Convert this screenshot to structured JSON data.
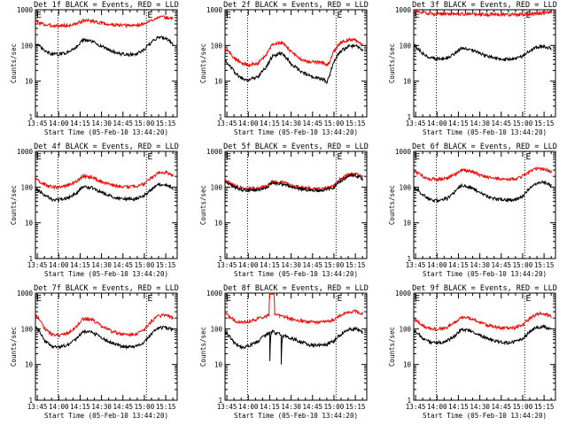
{
  "chart_data": {
    "type": "line",
    "layout": "3x3 grid of panels",
    "yscale": "log",
    "ylim": [
      1,
      1000
    ],
    "yticks": [
      "1",
      "10",
      "100",
      "1000"
    ],
    "ylabel": "Counts/sec",
    "xticks": [
      "13:45",
      "14:00",
      "14:15",
      "14:30",
      "14:45",
      "15:00",
      "15:15"
    ],
    "xtick_minutes": [
      0,
      15,
      30,
      45,
      60,
      75,
      90
    ],
    "xlim_minutes": [
      -1.3,
      98
    ],
    "xlabel": "Start Time (05-Feb-10 13:44:20)",
    "dotted_lines_minutes": [
      14.5,
      76.5
    ],
    "flag_marks": [
      {
        "label": "E",
        "position": "left"
      },
      {
        "label": "E",
        "position": "right"
      }
    ],
    "colors": {
      "events": "#000000",
      "lld": "#ff0000"
    },
    "panels": [
      {
        "title": "Det 1f BLACK = Events, RED = LLD",
        "series": [
          {
            "name": "Events",
            "color": "#000000",
            "x": [
              -1,
              5,
              10,
              15,
              22,
              28,
              32,
              38,
              45,
              52,
              58,
              64,
              70,
              75,
              80,
              85,
              90,
              95
            ],
            "y": [
              110,
              70,
              57,
              56,
              65,
              95,
              140,
              130,
              95,
              70,
              58,
              55,
              58,
              75,
              120,
              175,
              160,
              110
            ]
          },
          {
            "name": "LLD",
            "color": "#ff0000",
            "x": [
              -1,
              5,
              10,
              15,
              22,
              28,
              32,
              38,
              45,
              52,
              58,
              64,
              70,
              75,
              80,
              85,
              90,
              95
            ],
            "y": [
              470,
              380,
              360,
              355,
              360,
              410,
              500,
              490,
              420,
              380,
              365,
              360,
              370,
              400,
              500,
              640,
              600,
              560
            ]
          }
        ]
      },
      {
        "title": "Det 2f BLACK = Events, RED = LLD",
        "series": [
          {
            "name": "Events",
            "color": "#000000",
            "x": [
              -1,
              5,
              10,
              15,
              22,
              28,
              32,
              38,
              45,
              52,
              58,
              64,
              68,
              70,
              72,
              75,
              80,
              85,
              90,
              95
            ],
            "y": [
              38,
              18,
              12,
              11,
              13,
              25,
              50,
              60,
              30,
              18,
              14,
              12,
              11,
              9,
              14,
              35,
              70,
              95,
              100,
              75
            ]
          },
          {
            "name": "LLD",
            "color": "#ff0000",
            "x": [
              -1,
              5,
              10,
              15,
              22,
              28,
              32,
              38,
              45,
              52,
              58,
              64,
              68,
              70,
              72,
              75,
              80,
              85,
              90,
              95
            ],
            "y": [
              80,
              45,
              32,
              28,
              32,
              55,
              110,
              120,
              65,
              40,
              35,
              33,
              32,
              28,
              35,
              70,
              120,
              145,
              140,
              105
            ]
          }
        ]
      },
      {
        "title": "Det 3f BLACK = Events, RED = LLD",
        "series": [
          {
            "name": "Events",
            "color": "#000000",
            "x": [
              -1,
              5,
              10,
              15,
              22,
              28,
              32,
              38,
              45,
              52,
              58,
              64,
              70,
              75,
              80,
              85,
              90,
              95
            ],
            "y": [
              100,
              60,
              45,
              42,
              45,
              60,
              85,
              80,
              60,
              48,
              42,
              40,
              42,
              50,
              70,
              90,
              95,
              80
            ]
          },
          {
            "name": "LLD",
            "color": "#ff0000",
            "x": [
              -1,
              10,
              25,
              40,
              55,
              70,
              80,
              90,
              95
            ],
            "y": [
              920,
              770,
              760,
              750,
              740,
              730,
              760,
              820,
              860
            ]
          }
        ]
      },
      {
        "title": "Det 4f BLACK = Events, RED = LLD",
        "series": [
          {
            "name": "Events",
            "color": "#000000",
            "x": [
              -1,
              5,
              10,
              15,
              22,
              28,
              32,
              38,
              45,
              52,
              58,
              64,
              70,
              75,
              80,
              85,
              90,
              95
            ],
            "y": [
              90,
              60,
              45,
              44,
              50,
              70,
              100,
              95,
              70,
              55,
              48,
              46,
              48,
              58,
              85,
              120,
              115,
              95
            ]
          },
          {
            "name": "LLD",
            "color": "#ff0000",
            "x": [
              -1,
              5,
              10,
              15,
              22,
              28,
              32,
              38,
              45,
              52,
              58,
              64,
              70,
              75,
              80,
              85,
              90,
              95
            ],
            "y": [
              160,
              120,
              100,
              100,
              110,
              150,
              200,
              190,
              140,
              115,
              105,
              102,
              106,
              125,
              180,
              250,
              260,
              220
            ]
          }
        ]
      },
      {
        "title": "Det 5f BLACK = Events, RED = LLD",
        "series": [
          {
            "name": "Events",
            "color": "#000000",
            "x": [
              -1,
              5,
              10,
              15,
              22,
              28,
              32,
              38,
              45,
              52,
              58,
              64,
              70,
              75,
              80,
              85,
              90,
              95
            ],
            "y": [
              140,
              100,
              85,
              80,
              82,
              100,
              130,
              125,
              100,
              88,
              82,
              80,
              84,
              98,
              150,
              200,
              210,
              170
            ]
          },
          {
            "name": "LLD",
            "color": "#ff0000",
            "x": [
              -1,
              5,
              10,
              15,
              22,
              28,
              32,
              38,
              45,
              52,
              58,
              64,
              70,
              75,
              80,
              85,
              90,
              95
            ],
            "y": [
              150,
              110,
              95,
              90,
              92,
              110,
              145,
              140,
              112,
              98,
              92,
              90,
              94,
              110,
              170,
              225,
              240,
              200
            ]
          }
        ]
      },
      {
        "title": "Det 6f BLACK = Events, RED = LLD",
        "series": [
          {
            "name": "Events",
            "color": "#000000",
            "x": [
              -1,
              5,
              10,
              15,
              22,
              28,
              32,
              38,
              45,
              52,
              58,
              64,
              70,
              75,
              80,
              85,
              90,
              95
            ],
            "y": [
              100,
              60,
              45,
              42,
              48,
              75,
              110,
              100,
              70,
              52,
              45,
              43,
              45,
              55,
              90,
              130,
              135,
              110
            ]
          },
          {
            "name": "LLD",
            "color": "#ff0000",
            "x": [
              -1,
              5,
              10,
              15,
              22,
              28,
              32,
              38,
              45,
              52,
              58,
              64,
              70,
              75,
              80,
              85,
              90,
              95
            ],
            "y": [
              270,
              200,
              170,
              165,
              175,
              230,
              300,
              290,
              220,
              185,
              170,
              165,
              170,
              200,
              280,
              330,
              320,
              270
            ]
          }
        ]
      },
      {
        "title": "Det 7f BLACK = Events, RED = LLD",
        "series": [
          {
            "name": "Events",
            "color": "#000000",
            "x": [
              -1,
              5,
              10,
              15,
              22,
              28,
              32,
              38,
              45,
              52,
              58,
              64,
              70,
              75,
              80,
              85,
              90,
              95
            ],
            "y": [
              110,
              45,
              32,
              30,
              36,
              55,
              85,
              80,
              55,
              40,
              33,
              31,
              33,
              42,
              70,
              105,
              110,
              90
            ]
          },
          {
            "name": "LLD",
            "color": "#ff0000",
            "x": [
              -1,
              5,
              10,
              15,
              22,
              28,
              32,
              38,
              45,
              52,
              58,
              64,
              70,
              75,
              80,
              85,
              90,
              95
            ],
            "y": [
              240,
              100,
              70,
              65,
              75,
              120,
              190,
              180,
              120,
              85,
              72,
              68,
              72,
              95,
              160,
              230,
              240,
              200
            ]
          }
        ]
      },
      {
        "title": "Det 8f BLACK = Events, RED = LLD",
        "series": [
          {
            "name": "Events",
            "color": "#000000",
            "x": [
              -1,
              5,
              10,
              15,
              22,
              28,
              30,
              30.1,
              31,
              32,
              34,
              38,
              38.1,
              39,
              45,
              52,
              58,
              64,
              70,
              75,
              80,
              85,
              90,
              95
            ],
            "y": [
              80,
              40,
              30,
              32,
              45,
              70,
              80,
              12,
              80,
              85,
              75,
              70,
              11,
              65,
              55,
              42,
              36,
              34,
              36,
              45,
              70,
              95,
              100,
              80
            ]
          },
          {
            "name": "LLD",
            "color": "#ff0000",
            "x": [
              -1,
              5,
              10,
              15,
              22,
              28,
              29.5,
              30,
              33,
              33.5,
              38,
              45,
              52,
              58,
              64,
              70,
              75,
              80,
              85,
              90,
              95
            ],
            "y": [
              260,
              170,
              150,
              155,
              190,
              230,
              240,
              1000,
              1000,
              250,
              230,
              190,
              165,
              155,
              150,
              158,
              180,
              240,
              290,
              310,
              270
            ]
          }
        ]
      },
      {
        "title": "Det 9f BLACK = Events, RED = LLD",
        "series": [
          {
            "name": "Events",
            "color": "#000000",
            "x": [
              -1,
              5,
              10,
              15,
              22,
              28,
              32,
              38,
              45,
              52,
              58,
              64,
              70,
              75,
              80,
              85,
              90,
              95
            ],
            "y": [
              90,
              55,
              42,
              40,
              45,
              65,
              95,
              90,
              65,
              50,
              43,
              41,
              43,
              52,
              80,
              110,
              115,
              95
            ]
          },
          {
            "name": "LLD",
            "color": "#ff0000",
            "x": [
              -1,
              5,
              10,
              15,
              22,
              28,
              32,
              38,
              45,
              52,
              58,
              64,
              70,
              75,
              80,
              85,
              90,
              95
            ],
            "y": [
              180,
              120,
              100,
              98,
              110,
              155,
              210,
              200,
              150,
              120,
              108,
              104,
              108,
              130,
              190,
              260,
              270,
              220
            ]
          }
        ]
      }
    ]
  }
}
